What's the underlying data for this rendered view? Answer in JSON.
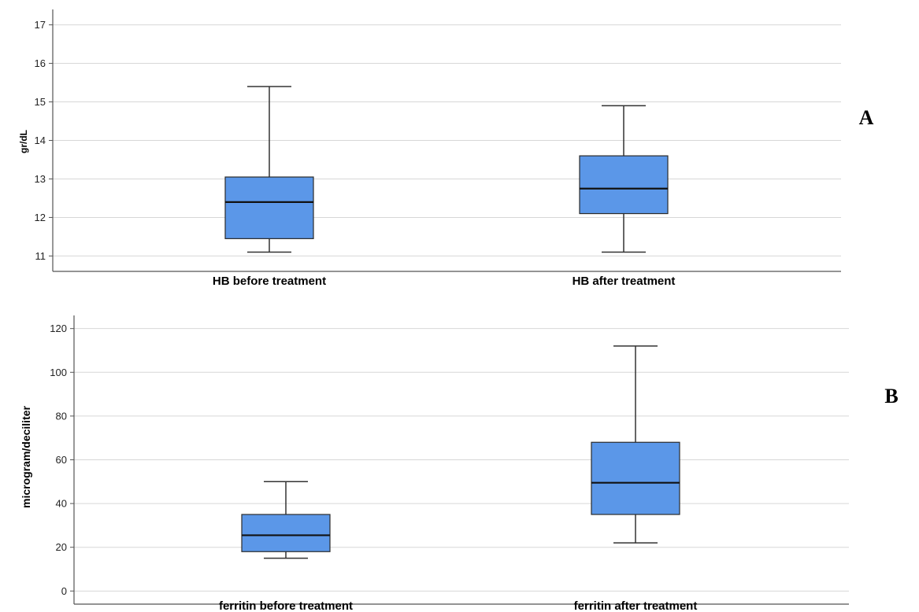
{
  "chart_data": [
    {
      "type": "box",
      "panel_label": "A",
      "ylabel": "gr/dL",
      "ylim": [
        10.6,
        17.4
      ],
      "yticks": [
        11,
        12,
        13,
        14,
        15,
        16,
        17
      ],
      "grid": true,
      "box_color": "#5b97e8",
      "categories": [
        "HB before treatment",
        "HB after treatment"
      ],
      "boxes": [
        {
          "min": 11.1,
          "q1": 11.45,
          "median": 12.4,
          "q3": 13.05,
          "max": 15.4
        },
        {
          "min": 11.1,
          "q1": 12.1,
          "median": 12.75,
          "q3": 13.6,
          "max": 14.9
        }
      ]
    },
    {
      "type": "box",
      "panel_label": "B",
      "ylabel": "microgram/deciliter",
      "ylim": [
        -6,
        126
      ],
      "yticks": [
        0,
        20,
        40,
        60,
        80,
        100,
        120
      ],
      "grid": true,
      "box_color": "#5b97e8",
      "categories": [
        "ferritin before treatment",
        "ferritin after treatment"
      ],
      "boxes": [
        {
          "min": 15,
          "q1": 18,
          "median": 25.5,
          "q3": 35,
          "max": 50
        },
        {
          "min": 22,
          "q1": 35,
          "median": 49.5,
          "q3": 68,
          "max": 112
        }
      ]
    }
  ]
}
